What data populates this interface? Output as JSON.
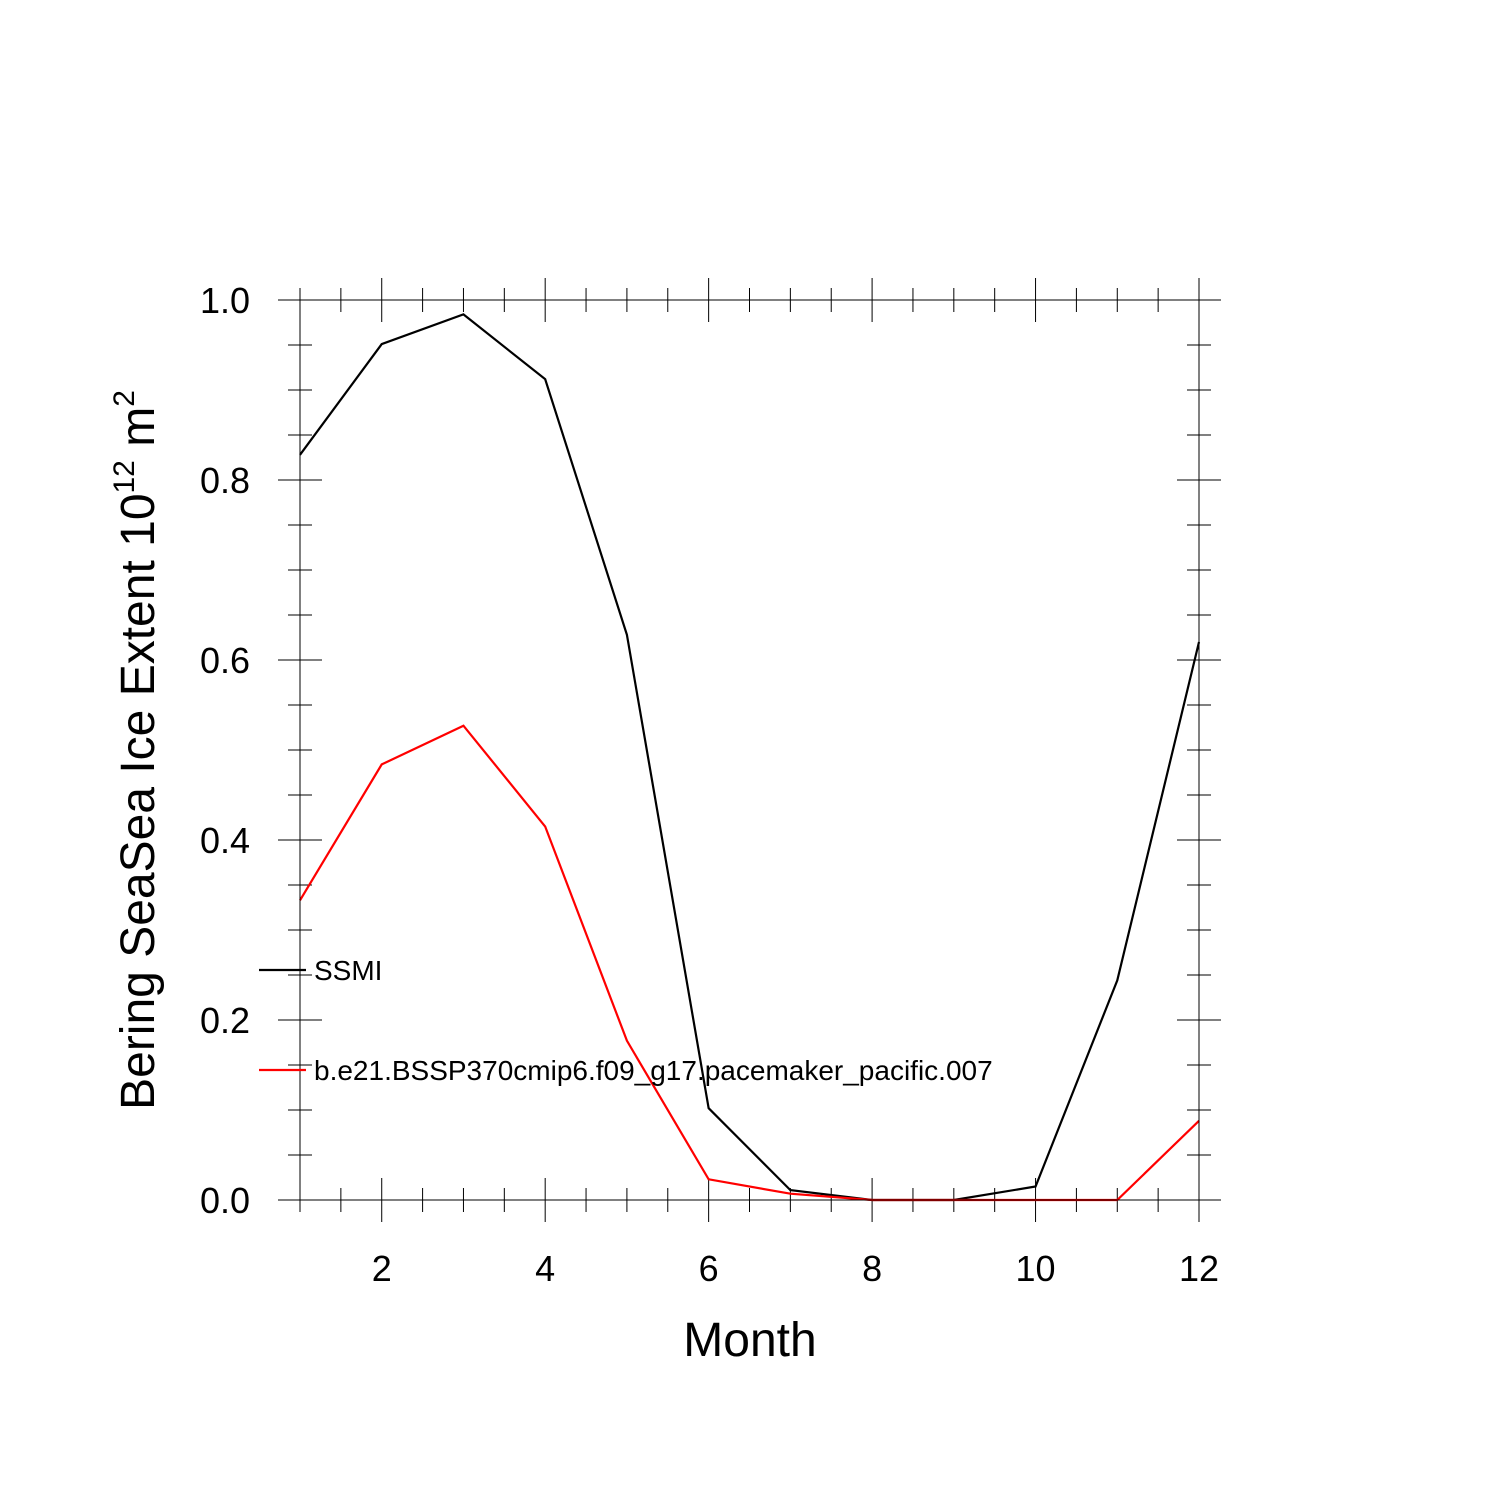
{
  "chart_data": {
    "type": "line",
    "title": "",
    "xlabel": "Month",
    "ylabel_main": "Bering SeaSea Ice Extent 10",
    "ylabel_sup": "12",
    "ylabel_unit": " m",
    "ylabel_unit_sup": "2",
    "x": [
      1,
      2,
      3,
      4,
      5,
      6,
      7,
      8,
      9,
      10,
      11,
      12
    ],
    "xlim": [
      1,
      12
    ],
    "ylim": [
      0,
      1
    ],
    "xticks": [
      2,
      4,
      6,
      8,
      10,
      12
    ],
    "xtick_labels": [
      "2",
      "4",
      "6",
      "8",
      "10",
      "12"
    ],
    "yticks": [
      0,
      0.2,
      0.4,
      0.6,
      0.8,
      1.0
    ],
    "ytick_labels": [
      "0.0",
      "0.2",
      "0.4",
      "0.6",
      "0.8",
      "1.0"
    ],
    "grid": false,
    "legend_position": "inside-left",
    "series": [
      {
        "name": "SSMI",
        "color": "#000000",
        "values": [
          0.828,
          0.951,
          0.984,
          0.912,
          0.628,
          0.102,
          0.011,
          0.0,
          0.0,
          0.015,
          0.244,
          0.62
        ]
      },
      {
        "name": "b.e21.BSSP370cmip6.f09_g17.pacemaker_pacific.007",
        "color": "#ff0000",
        "values": [
          0.333,
          0.484,
          0.527,
          0.415,
          0.177,
          0.023,
          0.007,
          0.0,
          0.0,
          0.0,
          0.0,
          0.088
        ]
      }
    ]
  }
}
